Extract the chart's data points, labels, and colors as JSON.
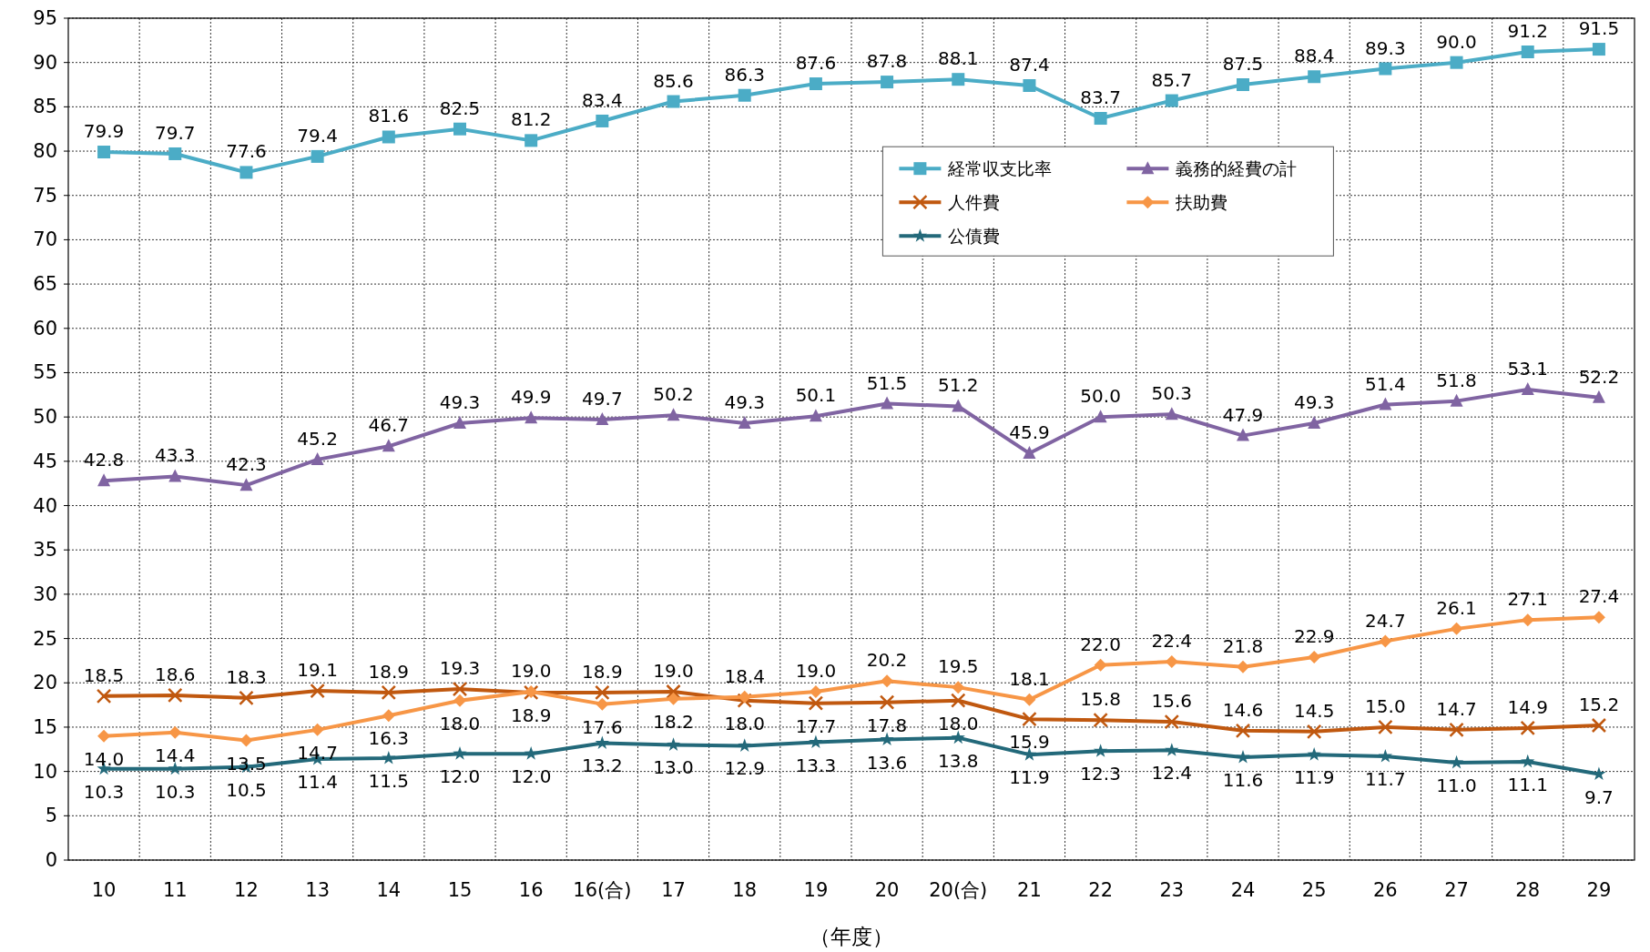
{
  "chart_data": {
    "type": "line",
    "xlabel": "（年度）",
    "categories": [
      "10",
      "11",
      "12",
      "13",
      "14",
      "15",
      "16",
      "16(合)",
      "17",
      "18",
      "19",
      "20",
      "20(合)",
      "21",
      "22",
      "23",
      "24",
      "25",
      "26",
      "27",
      "28",
      "29"
    ],
    "series": [
      {
        "name": "経常収支比率",
        "color": "#4bacc6",
        "marker": "square",
        "values": [
          79.9,
          79.7,
          77.6,
          79.4,
          81.6,
          82.5,
          81.2,
          83.4,
          85.6,
          86.3,
          87.6,
          87.8,
          88.1,
          87.4,
          83.7,
          85.7,
          87.5,
          88.4,
          89.3,
          90.0,
          91.2,
          91.5
        ],
        "value_labels": [
          "79.9",
          "79.7",
          "77.6",
          "79.4",
          "81.6",
          "82.5",
          "81.2",
          "83.4",
          "85.6",
          "86.3",
          "87.6",
          "87.8",
          "88.1",
          "87.4",
          "83.7",
          "85.7",
          "87.5",
          "88.4",
          "89.3",
          "90.0",
          "91.2",
          "91.5"
        ]
      },
      {
        "name": "義務的経費の計",
        "color": "#8064a2",
        "marker": "triangle",
        "values": [
          42.8,
          43.3,
          42.3,
          45.2,
          46.7,
          49.3,
          49.9,
          49.7,
          50.2,
          49.3,
          50.1,
          51.5,
          51.2,
          45.9,
          50.0,
          50.3,
          47.9,
          49.3,
          51.4,
          51.8,
          53.1,
          52.2
        ],
        "value_labels": [
          "42.8",
          "43.3",
          "42.3",
          "45.2",
          "46.7",
          "49.3",
          "49.9",
          "49.7",
          "50.2",
          "49.3",
          "50.1",
          "51.5",
          "51.2",
          "45.9",
          "50.0",
          "50.3",
          "47.9",
          "49.3",
          "51.4",
          "51.8",
          "53.1",
          "52.2"
        ]
      },
      {
        "name": "人件費",
        "color": "#c0580f",
        "marker": "cross",
        "values": [
          18.5,
          18.6,
          18.3,
          19.1,
          18.9,
          19.3,
          18.9,
          18.9,
          19.0,
          18.0,
          17.7,
          17.8,
          18.0,
          15.9,
          15.8,
          15.6,
          14.6,
          14.5,
          15.0,
          14.7,
          14.9,
          15.2
        ],
        "value_labels": [
          "18.5",
          "18.6",
          "18.3",
          "19.1",
          "18.9",
          "19.3",
          "18.9",
          "18.9",
          "19.0",
          "18.0",
          "17.7",
          "17.8",
          "18.0",
          "15.9",
          "15.8",
          "15.6",
          "14.6",
          "14.5",
          "15.0",
          "14.7",
          "14.9",
          "15.2"
        ]
      },
      {
        "name": "扶助費",
        "color": "#f79646",
        "marker": "diamond",
        "values": [
          14.0,
          14.4,
          13.5,
          14.7,
          16.3,
          18.0,
          19.0,
          17.6,
          18.2,
          18.4,
          19.0,
          20.2,
          19.5,
          18.1,
          22.0,
          22.4,
          21.8,
          22.9,
          24.7,
          26.1,
          27.1,
          27.4
        ],
        "value_labels": [
          "14.0",
          "14.4",
          "13.5",
          "14.7",
          "16.3",
          "18.0",
          "19.0",
          "17.6",
          "18.2",
          "18.4",
          "19.0",
          "20.2",
          "19.5",
          "18.1",
          "22.0",
          "22.4",
          "21.8",
          "22.9",
          "24.7",
          "26.1",
          "27.1",
          "27.4"
        ]
      },
      {
        "name": "公債費",
        "color": "#23697a",
        "marker": "star",
        "values": [
          10.3,
          10.3,
          10.5,
          11.4,
          11.5,
          12.0,
          12.0,
          13.2,
          13.0,
          12.9,
          13.3,
          13.6,
          13.8,
          11.9,
          12.3,
          12.4,
          11.6,
          11.9,
          11.7,
          11.0,
          11.1,
          9.7
        ],
        "value_labels": [
          "10.3",
          "10.3",
          "10.5",
          "11.4",
          "11.5",
          "12.0",
          "12.0",
          "13.2",
          "13.0",
          "12.9",
          "13.3",
          "13.6",
          "13.8",
          "11.9",
          "12.3",
          "12.4",
          "11.6",
          "11.9",
          "11.7",
          "11.0",
          "11.1",
          "9.7"
        ]
      }
    ],
    "ylim": [
      0,
      95
    ],
    "yticks": [
      0,
      5,
      10,
      15,
      20,
      25,
      30,
      35,
      40,
      45,
      50,
      55,
      60,
      65,
      70,
      75,
      80,
      85,
      90,
      95
    ],
    "grid": true,
    "legend": "top right"
  }
}
